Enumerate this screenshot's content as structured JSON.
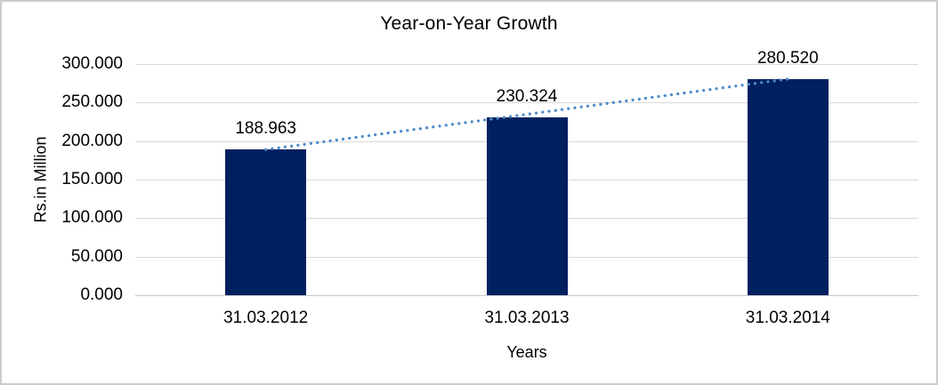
{
  "chart_data": {
    "type": "bar",
    "title": "Year-on-Year Growth",
    "xlabel": "Years",
    "ylabel": "Rs.in Million",
    "categories": [
      "31.03.2012",
      "31.03.2013",
      "31.03.2014"
    ],
    "series": [
      {
        "name": "Rs.in Million",
        "values": [
          188.963,
          230.324,
          280.52
        ]
      }
    ],
    "data_labels": [
      "188.963",
      "230.324",
      "280.520"
    ],
    "ylim": [
      0,
      300
    ],
    "ytick_step": 50,
    "yticks": [
      "300.000",
      "250.000",
      "200.000",
      "150.000",
      "100.000",
      "50.000",
      "0.000"
    ],
    "grid": true,
    "legend": "none",
    "trendline": {
      "type": "linear",
      "style": "dotted",
      "color": "#4e8bc8"
    },
    "colors": {
      "bar": "#002060",
      "trendline": "#4e8bc8",
      "gridline": "#d9d9d9",
      "axis_line": "#c9c9c9",
      "chart_border": "#cccccc",
      "text": "#000000",
      "background": "#ffffff"
    }
  }
}
